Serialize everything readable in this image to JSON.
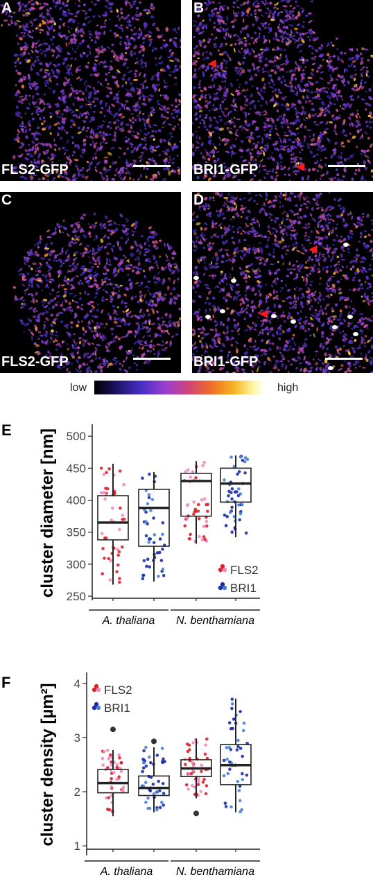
{
  "panels": [
    {
      "letter": "A",
      "title": "FLS2-GFP"
    },
    {
      "letter": "B",
      "title": "BRI1-GFP"
    },
    {
      "letter": "C",
      "title": "FLS2-GFP"
    },
    {
      "letter": "D",
      "title": "BRI1-GFP"
    }
  ],
  "colorbar": {
    "low": "low",
    "high": "high"
  },
  "colors": {
    "fls2_a": "#d7262b",
    "fls2_b": "#f08ac0",
    "bri1_a": "#1c2ea6",
    "bri1_b": "#4a7fd6",
    "outlier": "#333333"
  },
  "chart_data": [
    {
      "letter": "E",
      "type": "box",
      "ylabel": "cluster diameter [nm]",
      "ylim": [
        250,
        510
      ],
      "yticks": [
        250,
        300,
        350,
        400,
        450,
        500
      ],
      "groups": [
        "A. thaliana",
        "N. benthamiana"
      ],
      "legend": [
        "FLS2",
        "BRI1"
      ],
      "legend_position": "bottom-right",
      "boxes": [
        {
          "group": "A. thaliana",
          "series": "FLS2",
          "min": 268,
          "q1": 338,
          "median": 365,
          "q3": 407,
          "max": 457
        },
        {
          "group": "A. thaliana",
          "series": "BRI1",
          "min": 273,
          "q1": 328,
          "median": 388,
          "q3": 417,
          "max": 444
        },
        {
          "group": "N. benthamiana",
          "series": "FLS2",
          "min": 332,
          "q1": 375,
          "median": 430,
          "q3": 442,
          "max": 461
        },
        {
          "group": "N. benthamiana",
          "series": "BRI1",
          "min": 342,
          "q1": 397,
          "median": 426,
          "q3": 450,
          "max": 470
        }
      ]
    },
    {
      "letter": "F",
      "type": "box",
      "ylabel": "cluster density [µm²]",
      "ylim": [
        0.9,
        4.1
      ],
      "yticks": [
        1,
        2,
        3,
        4
      ],
      "groups": [
        "A. thaliana",
        "N. benthamiana"
      ],
      "legend": [
        "FLS2",
        "BRI1"
      ],
      "legend_position": "top-left",
      "boxes": [
        {
          "group": "A. thaliana",
          "series": "FLS2",
          "min": 1.55,
          "q1": 1.98,
          "median": 2.16,
          "q3": 2.41,
          "max": 2.77,
          "outliers": [
            3.15
          ]
        },
        {
          "group": "A. thaliana",
          "series": "BRI1",
          "min": 1.62,
          "q1": 1.93,
          "median": 2.07,
          "q3": 2.29,
          "max": 2.82,
          "outliers": [
            2.93
          ]
        },
        {
          "group": "N. benthamiana",
          "series": "FLS2",
          "min": 1.88,
          "q1": 2.28,
          "median": 2.43,
          "q3": 2.59,
          "max": 2.98,
          "outliers": [
            1.6
          ]
        },
        {
          "group": "N. benthamiana",
          "series": "BRI1",
          "min": 1.62,
          "q1": 2.13,
          "median": 2.49,
          "q3": 2.87,
          "max": 3.72
        }
      ]
    }
  ]
}
